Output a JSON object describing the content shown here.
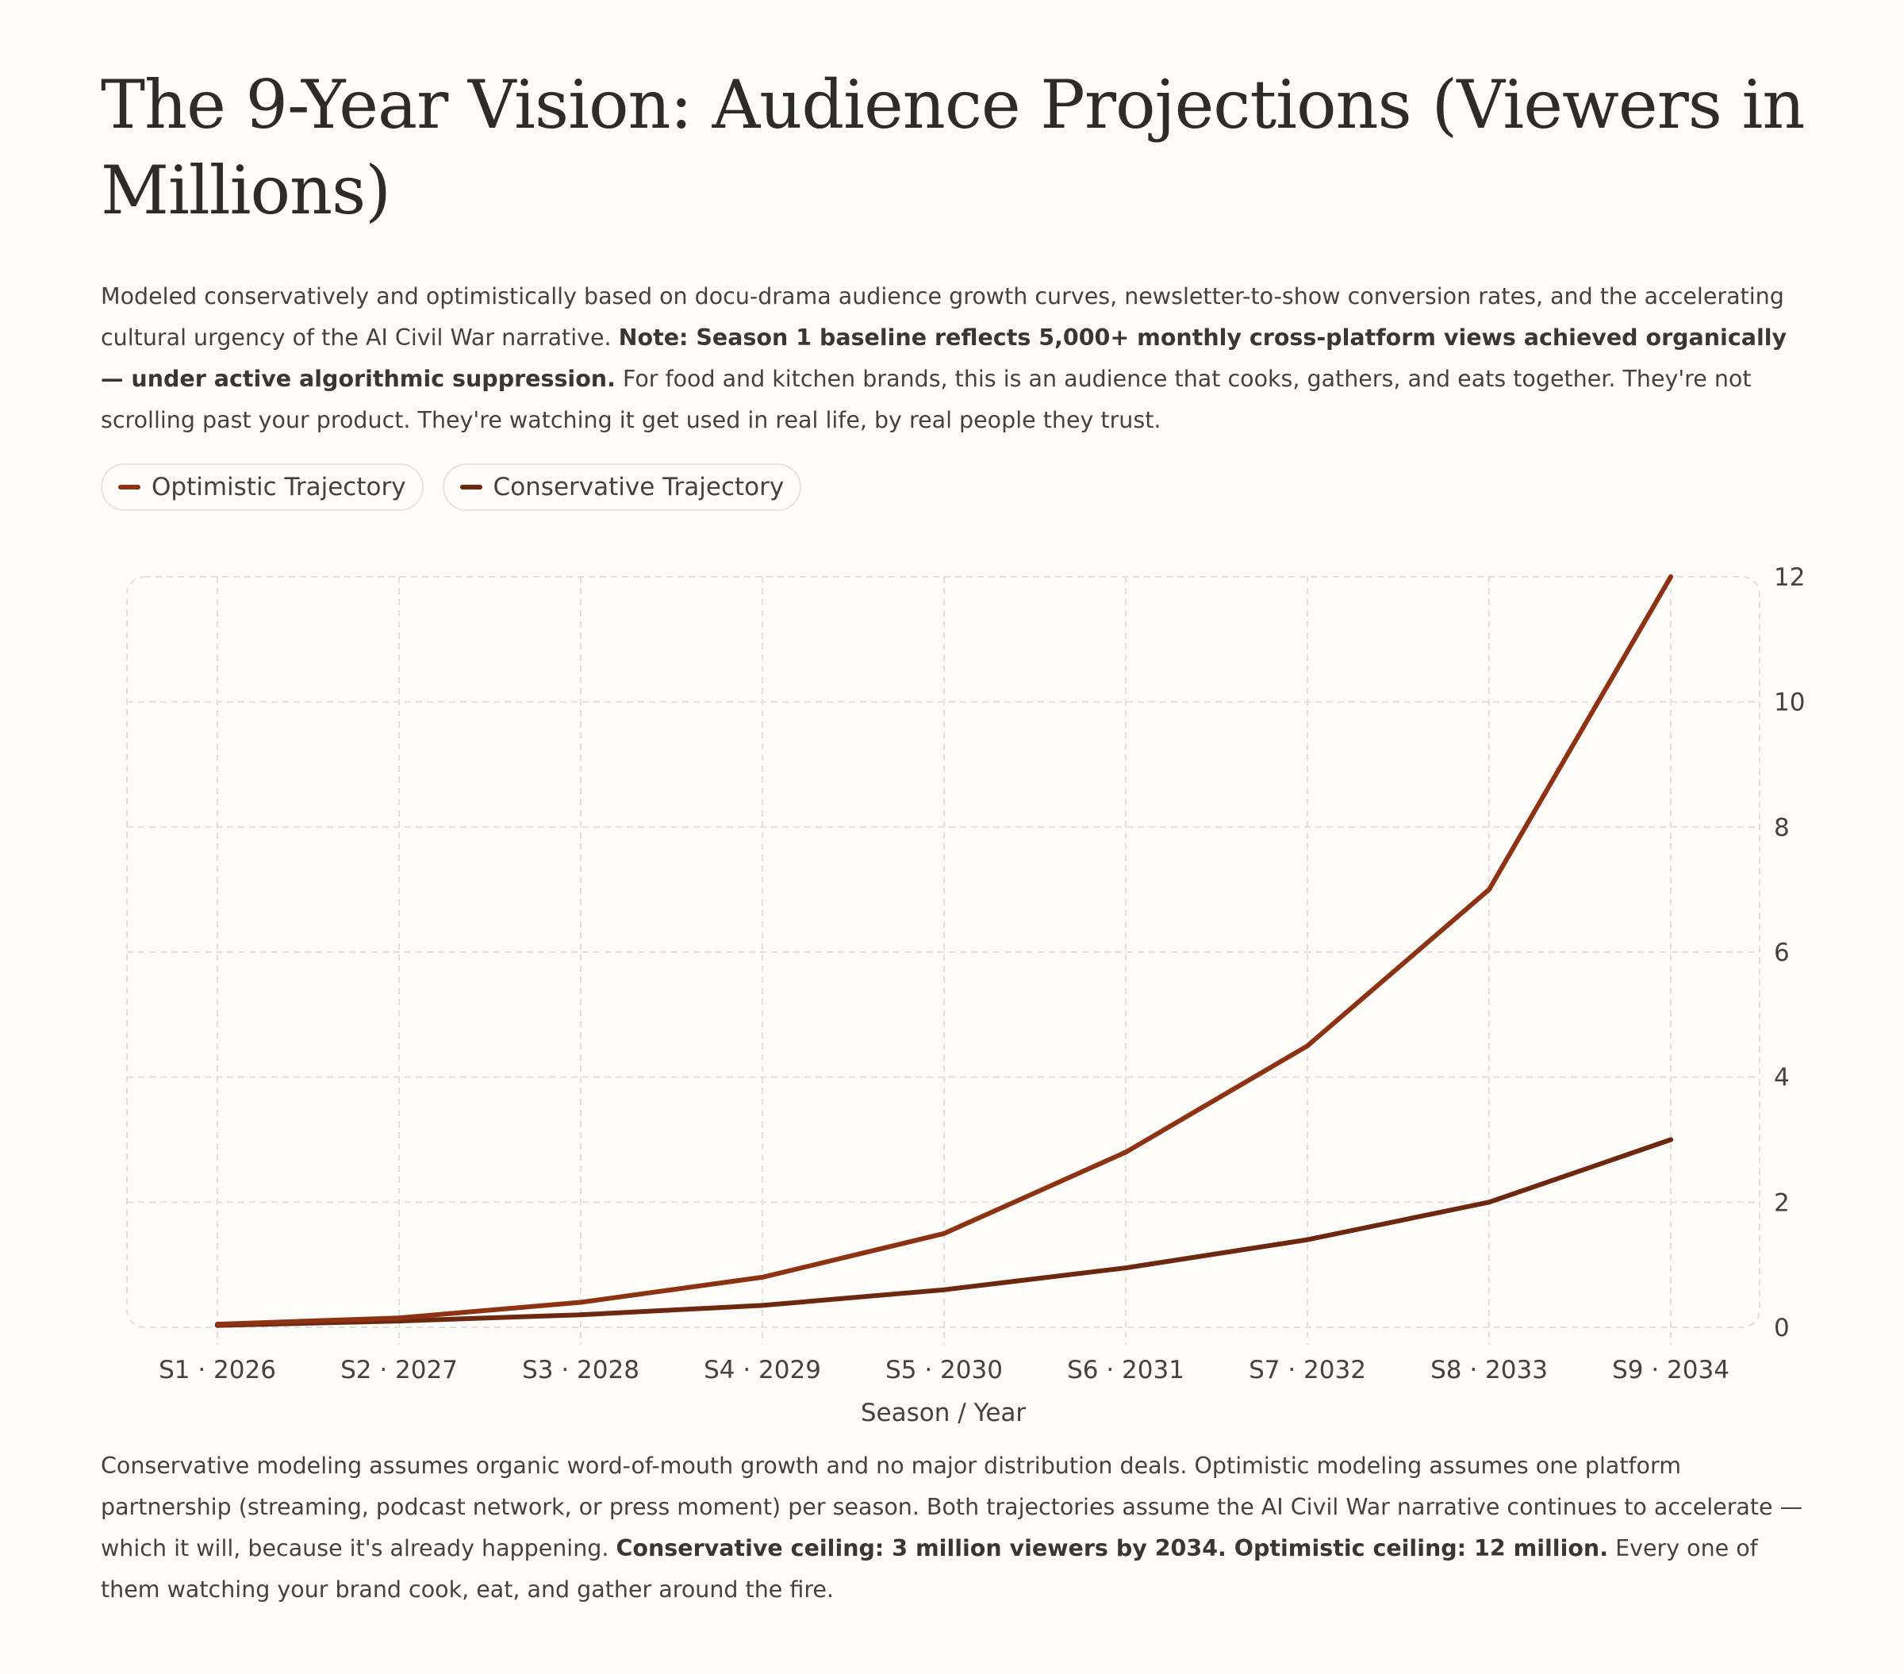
{
  "title": "The 9-Year Vision: Audience Projections (Viewers in Millions)",
  "intro": {
    "text1": "Modeled conservatively and optimistically based on docu-drama audience growth curves, newsletter-to-show conversion rates, and the accelerating cultural urgency of the AI Civil War narrative. ",
    "bold": "Note: Season 1 baseline reflects 5,000+ monthly cross-platform views achieved organically — under active algorithmic suppression.",
    "text2": " For food and kitchen brands, this is an audience that cooks, gathers, and eats together. They're not scrolling past your product. They're watching it get used in real life, by real people they trust."
  },
  "outro": {
    "text1": "Conservative modeling assumes organic word-of-mouth growth and no major distribution deals. Optimistic modeling assumes one platform partnership (streaming, podcast network, or press moment) per season. Both trajectories assume the AI Civil War narrative continues to accelerate — which it will, because it's already happening. ",
    "bold": "Conservative ceiling: 3 million viewers by 2034. Optimistic ceiling: 12 million.",
    "text2": " Every one of them watching your brand cook, eat, and gather around the fire."
  },
  "chart_data": {
    "type": "line",
    "xlabel": "Season / Year",
    "ylabel": "",
    "categories": [
      "S1 · 2026",
      "S2 · 2027",
      "S3 · 2028",
      "S4 · 2029",
      "S5 · 2030",
      "S6 · 2031",
      "S7 · 2032",
      "S8 · 2033",
      "S9 · 2034"
    ],
    "ylim": [
      0,
      12
    ],
    "yticks": [
      0,
      2,
      4,
      6,
      8,
      10,
      12
    ],
    "y_axis_side": "right",
    "grid": true,
    "legend_placement": "top-left",
    "series": [
      {
        "name": "Optimistic Trajectory",
        "color": "#8e3214",
        "values": [
          0.05,
          0.15,
          0.4,
          0.8,
          1.5,
          2.8,
          4.5,
          7,
          12
        ]
      },
      {
        "name": "Conservative Trajectory",
        "color": "#6e2810",
        "values": [
          0.03,
          0.1,
          0.2,
          0.35,
          0.6,
          0.95,
          1.4,
          2,
          3
        ]
      }
    ]
  }
}
